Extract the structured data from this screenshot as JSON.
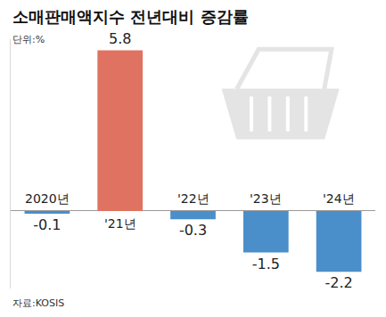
{
  "chart_data": {
    "type": "bar",
    "title": "소매판매액지수 전년대비 증감률",
    "subtitle": "단위:%",
    "source": "자료:KOSIS",
    "categories": [
      "2020년",
      "'21년",
      "'22년",
      "'23년",
      "'24년"
    ],
    "values": [
      -0.1,
      5.8,
      -0.3,
      -1.5,
      -2.2
    ],
    "colors": [
      "#4a8fca",
      "#e07262",
      "#4a8fca",
      "#4a8fca",
      "#4a8fca"
    ],
    "ylim": [
      -2.8,
      6.2
    ],
    "yticks": [
      0
    ],
    "grid": true,
    "data_labels": true,
    "tick_labels": "x"
  }
}
